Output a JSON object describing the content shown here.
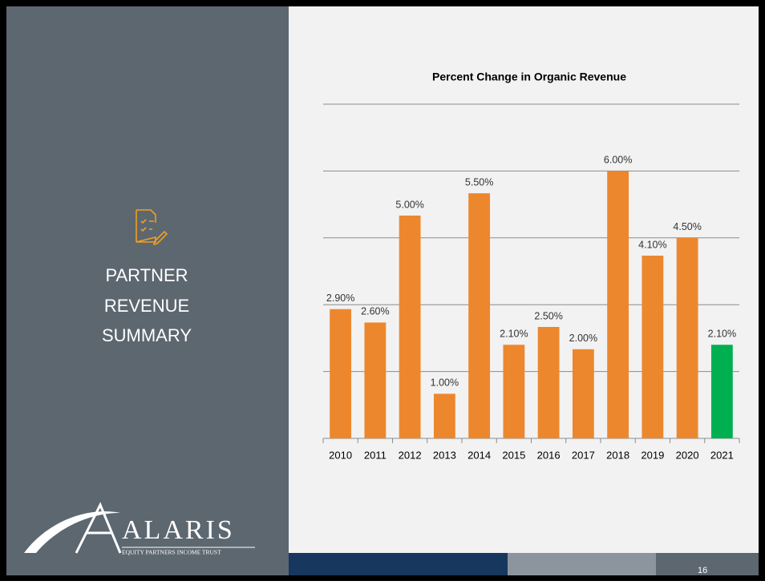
{
  "slide": {
    "heading": [
      "PARTNER",
      "REVENUE",
      "SUMMARY"
    ],
    "logo": {
      "name": "ALARIS",
      "tagline": "EQUITY PARTNERS INCOME TRUST"
    },
    "page_number": "16"
  },
  "chart_data": {
    "type": "bar",
    "title": "Percent Change in Organic Revenue",
    "categories": [
      "2010",
      "2011",
      "2012",
      "2013",
      "2014",
      "2015",
      "2016",
      "2017",
      "2018",
      "2019",
      "2020",
      "2021"
    ],
    "values": [
      2.9,
      2.6,
      5.0,
      1.0,
      5.5,
      2.1,
      2.5,
      2.0,
      6.0,
      4.1,
      4.5,
      2.1
    ],
    "value_labels": [
      "2.90%",
      "2.60%",
      "5.00%",
      "1.00%",
      "5.50%",
      "2.10%",
      "2.50%",
      "2.00%",
      "6.00%",
      "4.10%",
      "4.50%",
      "2.10%"
    ],
    "colors": [
      "#ed872d",
      "#ed872d",
      "#ed872d",
      "#ed872d",
      "#ed872d",
      "#ed872d",
      "#ed872d",
      "#ed872d",
      "#ed872d",
      "#ed872d",
      "#ed872d",
      "#00b050"
    ],
    "ylim": [
      0,
      7.5
    ],
    "yticks": [
      0,
      1.5,
      3,
      4.5,
      6,
      7.5
    ],
    "grid": true
  }
}
